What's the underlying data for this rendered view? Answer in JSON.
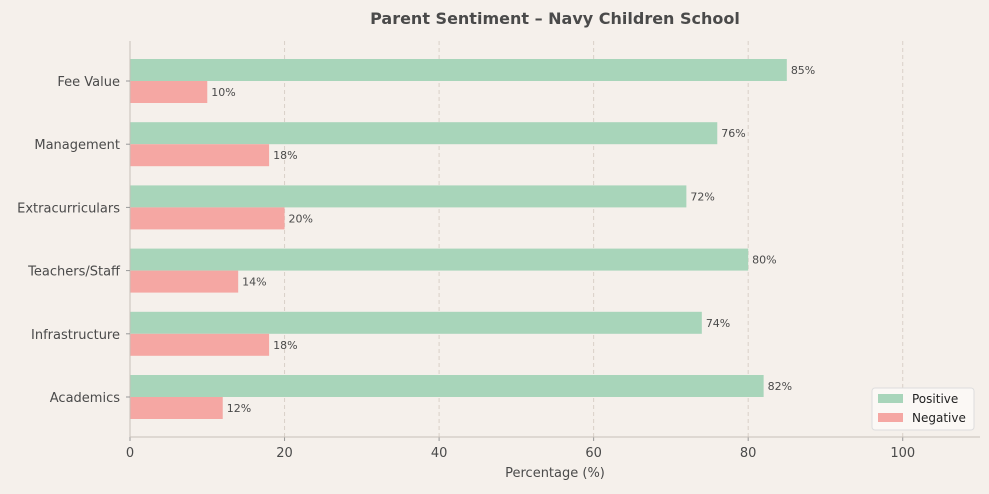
{
  "chart_data": {
    "type": "bar",
    "orientation": "horizontal",
    "title": "Parent Sentiment – Navy Children School",
    "xlabel": "Percentage (%)",
    "ylabel": "",
    "xlim": [
      0,
      110
    ],
    "xticks": [
      0,
      20,
      40,
      60,
      80,
      100
    ],
    "grid": "vertical dashed",
    "legend_position": "bottom-right",
    "categories": [
      "Fee Value",
      "Management",
      "Extracurriculars",
      "Teachers/Staff",
      "Infrastructure",
      "Academics"
    ],
    "series": [
      {
        "name": "Positive",
        "color": "#a8d5ba",
        "values": [
          85,
          76,
          72,
          80,
          74,
          82
        ]
      },
      {
        "name": "Negative",
        "color": "#f5a7a3",
        "values": [
          10,
          18,
          20,
          14,
          18,
          12
        ]
      }
    ],
    "label_suffix": "%"
  }
}
